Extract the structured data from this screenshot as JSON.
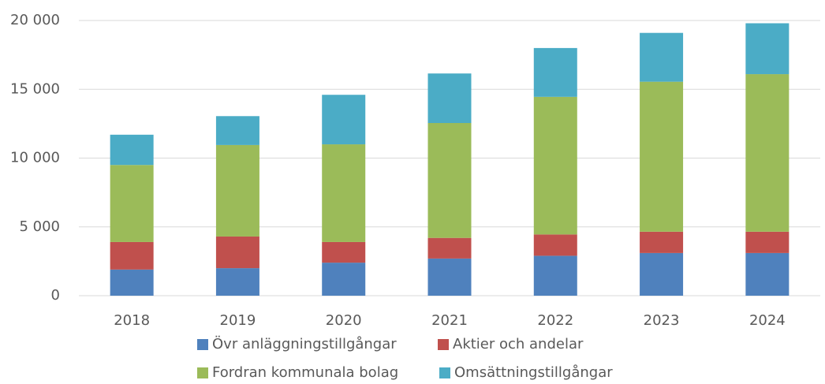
{
  "chart_data": {
    "type": "stacked_bar",
    "categories": [
      "2018",
      "2019",
      "2020",
      "2021",
      "2022",
      "2023",
      "2024"
    ],
    "series": [
      {
        "name": "Övr anläggningstillgångar",
        "color": "#4f81bd",
        "values": [
          1900,
          2000,
          2400,
          2700,
          2900,
          3100,
          3100
        ]
      },
      {
        "name": "Aktier och andelar",
        "color": "#c0504d",
        "values": [
          2000,
          2300,
          1500,
          1500,
          1550,
          1550,
          1550
        ]
      },
      {
        "name": "Fordran kommunala bolag",
        "color": "#9bbb59",
        "values": [
          5600,
          6650,
          7100,
          8350,
          10000,
          10900,
          11450
        ]
      },
      {
        "name": "Omsättningstillgångar",
        "color": "#4bacc6",
        "values": [
          2200,
          2100,
          3600,
          3600,
          3550,
          3550,
          3700
        ]
      }
    ],
    "ylim": [
      0,
      20000
    ],
    "yticks": [
      0,
      {
        "value": 5000,
        "label": "5 000"
      },
      {
        "value": 10000,
        "label": "10 000"
      },
      {
        "value": 15000,
        "label": "15 000"
      },
      {
        "value": 20000,
        "label": "20 000"
      }
    ],
    "grid": true,
    "legend": "bottom"
  }
}
